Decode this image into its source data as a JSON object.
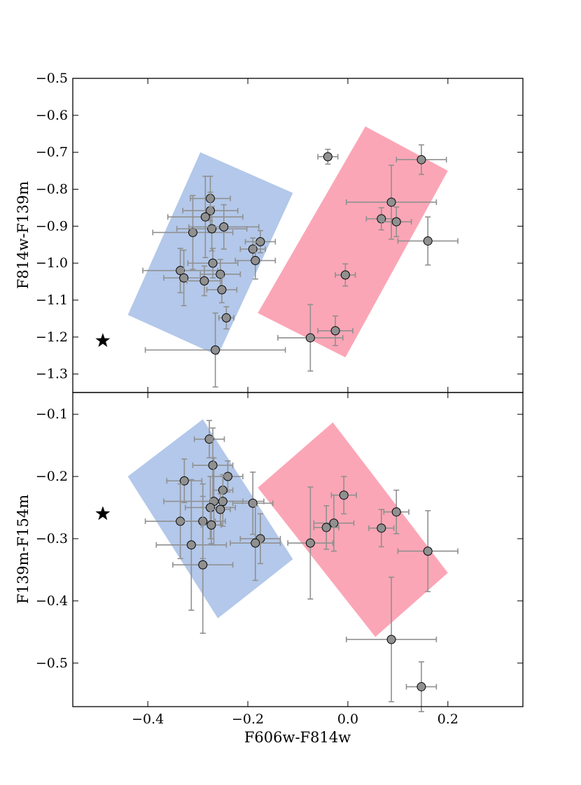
{
  "chart_data": [
    {
      "type": "scatter",
      "panel": "top",
      "xlabel": "F606w-F814w",
      "ylabel": "F814w-F139m",
      "xlim": [
        -0.55,
        0.35
      ],
      "ylim": [
        -1.35,
        -0.5
      ],
      "x_ticks": [
        -0.4,
        -0.2,
        0.0,
        0.2
      ],
      "y_ticks": [
        -1.3,
        -1.2,
        -1.1,
        -1.0,
        -0.9,
        -0.8,
        -0.7,
        -0.6,
        -0.5
      ],
      "y_tick_labels": [
        "−1.3",
        "−1.2",
        "−1.1",
        "−1.0",
        "−0.9",
        "−0.8",
        "−0.7",
        "−0.6",
        "−0.5"
      ],
      "colors": {
        "blue_region": "#b3c8ea",
        "red_region": "#fba6b6",
        "marker": "#909090",
        "errorbar": "#909090",
        "star": "#000000"
      },
      "regions": [
        {
          "name": "blue",
          "corners": [
            [
              -0.295,
              -0.7
            ],
            [
              -0.11,
              -0.81
            ],
            [
              -0.26,
              -1.25
            ],
            [
              -0.44,
              -1.14
            ]
          ]
        },
        {
          "name": "red",
          "corners": [
            [
              0.035,
              -0.63
            ],
            [
              0.2,
              -0.75
            ],
            [
              -0.005,
              -1.255
            ],
            [
              -0.18,
              -1.135
            ]
          ]
        }
      ],
      "reference_star": {
        "x": -0.49,
        "y": -1.21
      },
      "points": [
        {
          "x": -0.275,
          "y": -0.825,
          "xerr": 0.04,
          "yerr": 0.06
        },
        {
          "x": -0.275,
          "y": -0.858,
          "xerr": 0.055,
          "yerr": 0.05
        },
        {
          "x": -0.285,
          "y": -0.875,
          "xerr": 0.075,
          "yerr": 0.11
        },
        {
          "x": -0.31,
          "y": -0.917,
          "xerr": 0.08,
          "yerr": 0.1
        },
        {
          "x": -0.272,
          "y": -0.907,
          "xerr": 0.07,
          "yerr": 0.06
        },
        {
          "x": -0.248,
          "y": -0.902,
          "xerr": 0.07,
          "yerr": 0.06
        },
        {
          "x": -0.175,
          "y": -0.942,
          "xerr": 0.03,
          "yerr": 0.03
        },
        {
          "x": -0.19,
          "y": -0.962,
          "xerr": 0.025,
          "yerr": 0.03
        },
        {
          "x": -0.185,
          "y": -0.993,
          "xerr": 0.04,
          "yerr": 0.05
        },
        {
          "x": -0.27,
          "y": -1.0,
          "xerr": 0.05,
          "yerr": 0.04
        },
        {
          "x": -0.335,
          "y": -1.02,
          "xerr": 0.075,
          "yerr": 0.06
        },
        {
          "x": -0.255,
          "y": -1.03,
          "xerr": 0.04,
          "yerr": 0.04
        },
        {
          "x": -0.328,
          "y": -1.04,
          "xerr": 0.04,
          "yerr": 0.075
        },
        {
          "x": -0.287,
          "y": -1.048,
          "xerr": 0.035,
          "yerr": 0.04
        },
        {
          "x": -0.252,
          "y": -1.072,
          "xerr": 0.03,
          "yerr": 0.035
        },
        {
          "x": -0.243,
          "y": -1.148,
          "xerr": 0.015,
          "yerr": 0.03
        },
        {
          "x": -0.265,
          "y": -1.235,
          "xerr": 0.14,
          "yerr": 0.1
        },
        {
          "x": -0.04,
          "y": -0.712,
          "xerr": 0.02,
          "yerr": 0.02
        },
        {
          "x": 0.147,
          "y": -0.72,
          "xerr": 0.05,
          "yerr": 0.04
        },
        {
          "x": 0.087,
          "y": -0.835,
          "xerr": 0.09,
          "yerr": 0.1
        },
        {
          "x": 0.067,
          "y": -0.88,
          "xerr": 0.03,
          "yerr": 0.03
        },
        {
          "x": 0.097,
          "y": -0.888,
          "xerr": 0.03,
          "yerr": 0.04
        },
        {
          "x": 0.16,
          "y": -0.94,
          "xerr": 0.06,
          "yerr": 0.065
        },
        {
          "x": -0.005,
          "y": -1.032,
          "xerr": 0.02,
          "yerr": 0.03
        },
        {
          "x": -0.075,
          "y": -1.202,
          "xerr": 0.065,
          "yerr": 0.09
        },
        {
          "x": -0.025,
          "y": -1.183,
          "xerr": 0.035,
          "yerr": 0.04
        }
      ]
    },
    {
      "type": "scatter",
      "panel": "bottom",
      "xlabel": "F606w-F814w",
      "ylabel": "F139m-F154m",
      "xlim": [
        -0.55,
        0.35
      ],
      "ylim": [
        -0.57,
        -0.065
      ],
      "x_ticks": [
        -0.4,
        -0.2,
        0.0,
        0.2
      ],
      "x_tick_labels": [
        "−0.4",
        "−0.2",
        "0.0",
        "0.2"
      ],
      "y_ticks": [
        -0.5,
        -0.4,
        -0.3,
        -0.2,
        -0.1
      ],
      "y_tick_labels": [
        "−0.5",
        "−0.4",
        "−0.3",
        "−0.2",
        "−0.1"
      ],
      "colors": {
        "blue_region": "#b3c8ea",
        "red_region": "#fba6b6",
        "marker": "#909090",
        "errorbar": "#909090",
        "star": "#000000"
      },
      "regions": [
        {
          "name": "blue",
          "corners": [
            [
              -0.29,
              -0.108
            ],
            [
              -0.11,
              -0.333
            ],
            [
              -0.26,
              -0.428
            ],
            [
              -0.44,
              -0.2
            ]
          ]
        },
        {
          "name": "red",
          "corners": [
            [
              -0.03,
              -0.113
            ],
            [
              0.2,
              -0.355
            ],
            [
              0.055,
              -0.458
            ],
            [
              -0.18,
              -0.218
            ]
          ]
        }
      ],
      "reference_star": {
        "x": -0.49,
        "y": -0.26
      },
      "points": [
        {
          "x": -0.277,
          "y": -0.14,
          "xerr": 0.03,
          "yerr": 0.03
        },
        {
          "x": -0.27,
          "y": -0.182,
          "xerr": 0.04,
          "yerr": 0.06
        },
        {
          "x": -0.24,
          "y": -0.2,
          "xerr": 0.03,
          "yerr": 0.025
        },
        {
          "x": -0.327,
          "y": -0.207,
          "xerr": 0.035,
          "yerr": 0.035
        },
        {
          "x": -0.25,
          "y": -0.222,
          "xerr": 0.02,
          "yerr": 0.025
        },
        {
          "x": -0.268,
          "y": -0.24,
          "xerr": 0.1,
          "yerr": 0.07
        },
        {
          "x": -0.25,
          "y": -0.24,
          "xerr": 0.04,
          "yerr": 0.04
        },
        {
          "x": -0.19,
          "y": -0.243,
          "xerr": 0.04,
          "yerr": 0.05
        },
        {
          "x": -0.275,
          "y": -0.25,
          "xerr": 0.05,
          "yerr": 0.05
        },
        {
          "x": -0.255,
          "y": -0.253,
          "xerr": 0.02,
          "yerr": 0.025
        },
        {
          "x": -0.335,
          "y": -0.272,
          "xerr": 0.07,
          "yerr": 0.06
        },
        {
          "x": -0.29,
          "y": -0.272,
          "xerr": 0.045,
          "yerr": 0.06
        },
        {
          "x": -0.273,
          "y": -0.278,
          "xerr": 0.02,
          "yerr": 0.03
        },
        {
          "x": -0.175,
          "y": -0.3,
          "xerr": 0.04,
          "yerr": 0.04
        },
        {
          "x": -0.185,
          "y": -0.307,
          "xerr": 0.05,
          "yerr": 0.06
        },
        {
          "x": -0.313,
          "y": -0.31,
          "xerr": 0.07,
          "yerr": 0.105
        },
        {
          "x": -0.29,
          "y": -0.342,
          "xerr": 0.06,
          "yerr": 0.11
        },
        {
          "x": -0.008,
          "y": -0.23,
          "xerr": 0.025,
          "yerr": 0.03
        },
        {
          "x": 0.097,
          "y": -0.257,
          "xerr": 0.025,
          "yerr": 0.035
        },
        {
          "x": -0.028,
          "y": -0.275,
          "xerr": 0.04,
          "yerr": 0.045
        },
        {
          "x": -0.043,
          "y": -0.282,
          "xerr": 0.025,
          "yerr": 0.035
        },
        {
          "x": 0.067,
          "y": -0.283,
          "xerr": 0.025,
          "yerr": 0.03
        },
        {
          "x": -0.075,
          "y": -0.307,
          "xerr": 0.045,
          "yerr": 0.09
        },
        {
          "x": 0.16,
          "y": -0.32,
          "xerr": 0.06,
          "yerr": 0.065
        },
        {
          "x": 0.087,
          "y": -0.462,
          "xerr": 0.09,
          "yerr": 0.1
        },
        {
          "x": 0.147,
          "y": -0.538,
          "xerr": 0.03,
          "yerr": 0.04
        }
      ]
    }
  ]
}
